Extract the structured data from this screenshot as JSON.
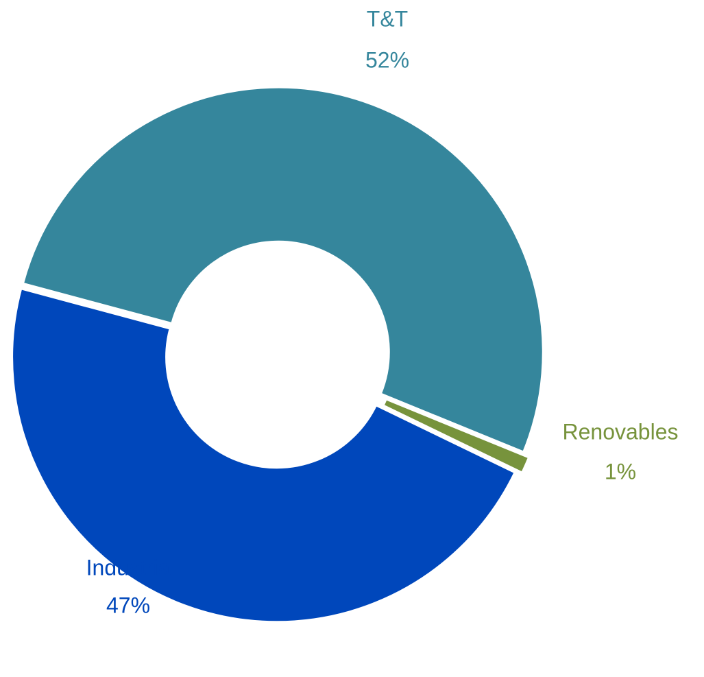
{
  "chart_data": {
    "type": "donut",
    "categories": [
      "T&T",
      "Renovables",
      "Industria"
    ],
    "values": [
      52,
      1,
      47
    ],
    "value_labels": [
      "52%",
      "1%",
      "47%"
    ],
    "colors": [
      "#35869c",
      "#77933c",
      "#0047bb"
    ]
  }
}
